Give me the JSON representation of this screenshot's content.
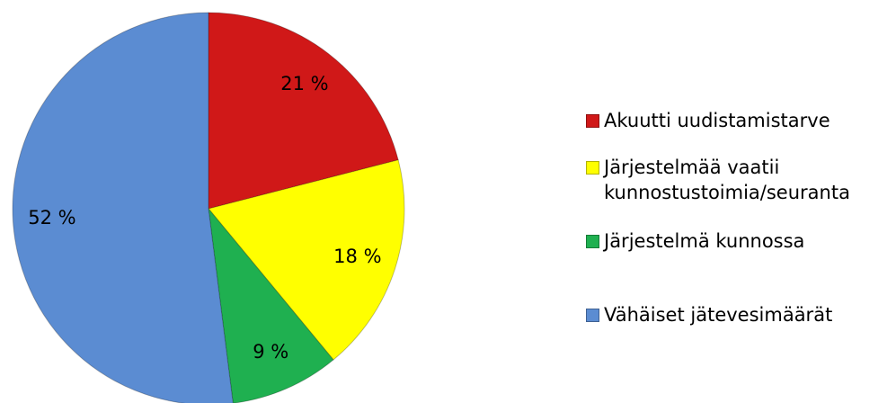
{
  "chart_data": {
    "type": "pie",
    "categories": [
      "Akuutti uudistamistarve",
      "Järjestelmää vaatii kunnostustoimia/seuranta",
      "Järjestelmä kunnossa",
      "Vähäiset jätevesimäärät"
    ],
    "values": [
      21,
      18,
      9,
      52
    ],
    "value_labels": [
      "21 %",
      "18 %",
      "9 %",
      "52 %"
    ],
    "colors": [
      "#d01818",
      "#ffff00",
      "#1fb050",
      "#5b8cd2"
    ],
    "legend": "right"
  }
}
